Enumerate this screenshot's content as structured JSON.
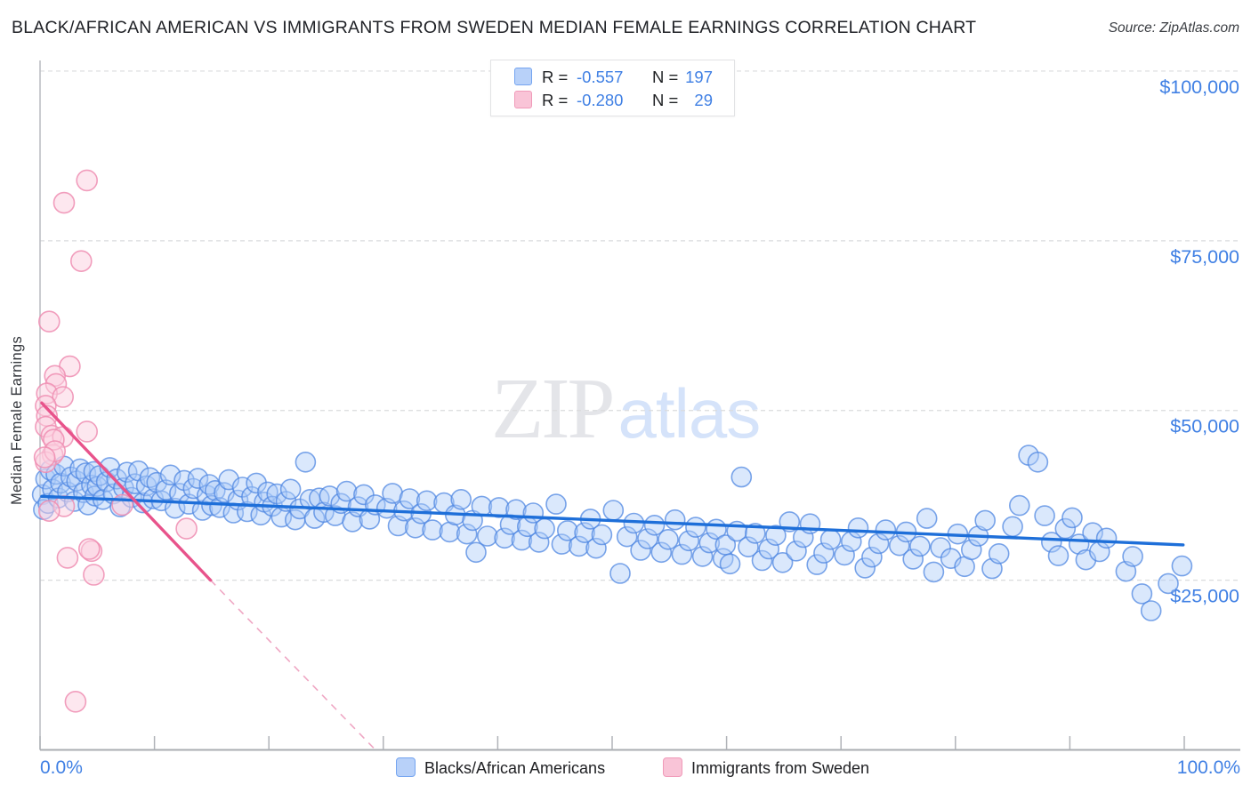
{
  "title": "BLACK/AFRICAN AMERICAN VS IMMIGRANTS FROM SWEDEN MEDIAN FEMALE EARNINGS CORRELATION CHART",
  "source": "Source: ZipAtlas.com",
  "watermark": {
    "part1": "ZIP",
    "part2": "atlas"
  },
  "legend_box": {
    "rows": [
      {
        "series": "Blacks/African Americans",
        "r_label": "R =",
        "r_value": "-0.557",
        "n_label": "N =",
        "n_value": "197"
      },
      {
        "series": "Immigrants from Sweden",
        "r_label": "R =",
        "r_value": "-0.280",
        "n_label": "N =",
        "n_value": "29"
      }
    ]
  },
  "bottom_legend": [
    {
      "label": "Blacks/African Americans",
      "swatch": "blue"
    },
    {
      "label": "Immigrants from Sweden",
      "swatch": "pink"
    }
  ],
  "colors": {
    "accent_blue": "#1e6fd9",
    "accent_pink": "#e8538b",
    "tick_label": "#4080e4",
    "point_blue_stroke": "#4f87e2",
    "point_pink_stroke": "#ee8db2"
  },
  "chart_data": {
    "type": "scatter",
    "title": "Black/African American vs Immigrants from Sweden Median Female Earnings Correlation",
    "xlabel": "",
    "ylabel": "Median Female Earnings",
    "x_unit": "percent",
    "y_unit": "USD",
    "xlim": [
      0,
      100
    ],
    "ylim": [
      0,
      101500
    ],
    "grid": "horizontal-dashed",
    "legend_position": "top-center",
    "x_tick_percents": [
      0,
      10,
      20,
      30,
      40,
      50,
      60,
      70,
      80,
      90,
      100
    ],
    "x_tick_labels": {
      "min": "0.0%",
      "max": "100.0%"
    },
    "y_ticks": [
      {
        "value": 100000,
        "label": "$100,000"
      },
      {
        "value": 75000,
        "label": "$75,000"
      },
      {
        "value": 50000,
        "label": "$50,000"
      },
      {
        "value": 25000,
        "label": "$25,000"
      }
    ],
    "series": [
      {
        "name": "Blacks/African Americans",
        "R": -0.557,
        "N": 197,
        "points": [
          [
            0.2,
            37600
          ],
          [
            0.3,
            35400
          ],
          [
            0.5,
            39900
          ],
          [
            0.7,
            36300
          ],
          [
            0.9,
            41200
          ],
          [
            1.1,
            38400
          ],
          [
            1.4,
            40600
          ],
          [
            1.6,
            37100
          ],
          [
            1.8,
            39300
          ],
          [
            2.1,
            41800
          ],
          [
            2.4,
            38000
          ],
          [
            2.7,
            40200
          ],
          [
            3.0,
            36600
          ],
          [
            3.2,
            39600
          ],
          [
            3.5,
            41400
          ],
          [
            3.8,
            37900
          ],
          [
            4.0,
            40800
          ],
          [
            4.2,
            36100
          ],
          [
            4.5,
            39000
          ],
          [
            4.7,
            41000
          ],
          [
            4.8,
            37400
          ],
          [
            5.0,
            38800
          ],
          [
            5.2,
            40400
          ],
          [
            5.5,
            36900
          ],
          [
            5.8,
            39500
          ],
          [
            6.1,
            41600
          ],
          [
            6.4,
            37700
          ],
          [
            6.7,
            39900
          ],
          [
            7.0,
            35800
          ],
          [
            7.3,
            38600
          ],
          [
            7.6,
            40900
          ],
          [
            8.0,
            37200
          ],
          [
            8.3,
            39200
          ],
          [
            8.6,
            41100
          ],
          [
            9.0,
            36400
          ],
          [
            9.3,
            38900
          ],
          [
            9.6,
            40100
          ],
          [
            9.9,
            37000
          ],
          [
            10.2,
            39400
          ],
          [
            10.6,
            36700
          ],
          [
            11.0,
            38300
          ],
          [
            11.4,
            40500
          ],
          [
            11.8,
            35600
          ],
          [
            12.2,
            37800
          ],
          [
            12.6,
            39700
          ],
          [
            13.0,
            36200
          ],
          [
            13.4,
            38500
          ],
          [
            13.8,
            40000
          ],
          [
            14.2,
            35300
          ],
          [
            14.6,
            37500
          ],
          [
            14.8,
            39100
          ],
          [
            15.0,
            36000
          ],
          [
            15.3,
            38200
          ],
          [
            15.7,
            35700
          ],
          [
            16.1,
            37900
          ],
          [
            16.5,
            39800
          ],
          [
            16.9,
            34900
          ],
          [
            17.3,
            36800
          ],
          [
            17.7,
            38700
          ],
          [
            18.1,
            35100
          ],
          [
            18.5,
            37300
          ],
          [
            18.9,
            39300
          ],
          [
            19.3,
            34600
          ],
          [
            19.6,
            36500
          ],
          [
            19.9,
            38000
          ],
          [
            20.3,
            35900
          ],
          [
            20.7,
            37700
          ],
          [
            21.1,
            34300
          ],
          [
            21.5,
            36600
          ],
          [
            21.9,
            38400
          ],
          [
            22.3,
            33900
          ],
          [
            22.7,
            35500
          ],
          [
            23.2,
            42400
          ],
          [
            23.6,
            36900
          ],
          [
            24.0,
            34100
          ],
          [
            24.4,
            37100
          ],
          [
            24.8,
            35000
          ],
          [
            25.3,
            37400
          ],
          [
            25.8,
            34500
          ],
          [
            26.3,
            36300
          ],
          [
            26.8,
            38100
          ],
          [
            27.3,
            33600
          ],
          [
            27.8,
            35800
          ],
          [
            28.3,
            37600
          ],
          [
            28.8,
            34000
          ],
          [
            29.3,
            36100
          ],
          [
            30.3,
            35600
          ],
          [
            30.8,
            37800
          ],
          [
            31.3,
            33000
          ],
          [
            31.8,
            35200
          ],
          [
            32.3,
            37000
          ],
          [
            32.8,
            32700
          ],
          [
            33.3,
            34800
          ],
          [
            33.8,
            36700
          ],
          [
            34.3,
            32400
          ],
          [
            35.3,
            36400
          ],
          [
            35.8,
            32100
          ],
          [
            36.3,
            34600
          ],
          [
            36.8,
            36900
          ],
          [
            37.3,
            31800
          ],
          [
            37.8,
            33800
          ],
          [
            38.1,
            29100
          ],
          [
            38.6,
            35900
          ],
          [
            39.1,
            31500
          ],
          [
            40.1,
            35700
          ],
          [
            40.6,
            31200
          ],
          [
            41.1,
            33200
          ],
          [
            41.6,
            35400
          ],
          [
            42.1,
            30900
          ],
          [
            42.6,
            32900
          ],
          [
            43.1,
            34900
          ],
          [
            43.6,
            30600
          ],
          [
            44.1,
            32600
          ],
          [
            45.1,
            36200
          ],
          [
            45.6,
            30300
          ],
          [
            46.1,
            32300
          ],
          [
            47.1,
            30000
          ],
          [
            47.6,
            32000
          ],
          [
            48.1,
            34000
          ],
          [
            48.6,
            29700
          ],
          [
            49.1,
            31700
          ],
          [
            50.1,
            35300
          ],
          [
            50.7,
            26000
          ],
          [
            51.3,
            31400
          ],
          [
            51.9,
            33400
          ],
          [
            52.5,
            29400
          ],
          [
            53.1,
            31100
          ],
          [
            53.7,
            33100
          ],
          [
            54.3,
            29100
          ],
          [
            54.9,
            31000
          ],
          [
            55.5,
            33900
          ],
          [
            56.1,
            28800
          ],
          [
            56.7,
            30800
          ],
          [
            57.3,
            32800
          ],
          [
            57.9,
            28500
          ],
          [
            58.5,
            30500
          ],
          [
            59.1,
            32500
          ],
          [
            59.7,
            28200
          ],
          [
            59.9,
            30200
          ],
          [
            60.3,
            27400
          ],
          [
            60.9,
            32200
          ],
          [
            61.3,
            40200
          ],
          [
            61.9,
            29900
          ],
          [
            62.5,
            31900
          ],
          [
            63.1,
            27900
          ],
          [
            63.7,
            29600
          ],
          [
            64.3,
            31600
          ],
          [
            64.9,
            27600
          ],
          [
            65.5,
            33600
          ],
          [
            66.1,
            29300
          ],
          [
            66.7,
            31300
          ],
          [
            67.3,
            33300
          ],
          [
            67.9,
            27300
          ],
          [
            68.5,
            29000
          ],
          [
            69.1,
            31000
          ],
          [
            70.3,
            28700
          ],
          [
            70.9,
            30700
          ],
          [
            71.5,
            32700
          ],
          [
            72.1,
            26800
          ],
          [
            72.7,
            28400
          ],
          [
            73.3,
            30400
          ],
          [
            73.9,
            32400
          ],
          [
            75.1,
            30100
          ],
          [
            75.7,
            32100
          ],
          [
            76.3,
            28100
          ],
          [
            76.9,
            30000
          ],
          [
            77.5,
            34100
          ],
          [
            78.1,
            26200
          ],
          [
            78.7,
            29800
          ],
          [
            79.6,
            28200
          ],
          [
            80.2,
            31800
          ],
          [
            80.8,
            27000
          ],
          [
            81.4,
            29500
          ],
          [
            82.0,
            31500
          ],
          [
            82.6,
            33800
          ],
          [
            83.2,
            26700
          ],
          [
            83.8,
            28900
          ],
          [
            85.0,
            32900
          ],
          [
            85.6,
            36000
          ],
          [
            86.4,
            43400
          ],
          [
            87.2,
            42400
          ],
          [
            87.8,
            34500
          ],
          [
            88.4,
            30600
          ],
          [
            89.0,
            28600
          ],
          [
            89.6,
            32600
          ],
          [
            90.2,
            34200
          ],
          [
            90.8,
            30300
          ],
          [
            91.4,
            28000
          ],
          [
            92.0,
            32000
          ],
          [
            92.6,
            29200
          ],
          [
            93.2,
            31200
          ],
          [
            94.9,
            26300
          ],
          [
            95.5,
            28500
          ],
          [
            96.3,
            23000
          ],
          [
            97.1,
            20500
          ],
          [
            98.6,
            24500
          ],
          [
            99.8,
            27100
          ]
        ]
      },
      {
        "name": "Immigrants from Sweden",
        "R": -0.28,
        "N": 29,
        "points": [
          [
            4.1,
            83900
          ],
          [
            2.1,
            80600
          ],
          [
            3.6,
            72000
          ],
          [
            0.8,
            63100
          ],
          [
            2.6,
            56500
          ],
          [
            1.3,
            55100
          ],
          [
            1.4,
            53900
          ],
          [
            0.6,
            52500
          ],
          [
            2.0,
            52000
          ],
          [
            0.5,
            50700
          ],
          [
            0.6,
            49200
          ],
          [
            0.5,
            47600
          ],
          [
            1.0,
            46300
          ],
          [
            2.0,
            46100
          ],
          [
            4.1,
            46900
          ],
          [
            1.1,
            43500
          ],
          [
            0.5,
            42400
          ],
          [
            1.2,
            45700
          ],
          [
            1.3,
            44000
          ],
          [
            0.4,
            43100
          ],
          [
            2.1,
            35900
          ],
          [
            0.8,
            35200
          ],
          [
            7.2,
            36100
          ],
          [
            12.8,
            32600
          ],
          [
            2.4,
            28300
          ],
          [
            4.5,
            29300
          ],
          [
            4.3,
            29600
          ],
          [
            4.7,
            25800
          ],
          [
            3.1,
            7100
          ]
        ]
      }
    ],
    "trend_lines": [
      {
        "series": "Blacks/African Americans",
        "style": "solid",
        "x1": 0.15,
        "y1": 37350,
        "x2": 99.9,
        "y2": 30200
      },
      {
        "series": "Immigrants from Sweden",
        "style": "solid",
        "x1": 0.15,
        "y1": 51100,
        "x2": 14.9,
        "y2": 25000
      },
      {
        "series": "Immigrants from Sweden",
        "style": "dashed",
        "x1": 14.9,
        "y1": 25000,
        "x2": 29.2,
        "y2": 200
      }
    ]
  }
}
